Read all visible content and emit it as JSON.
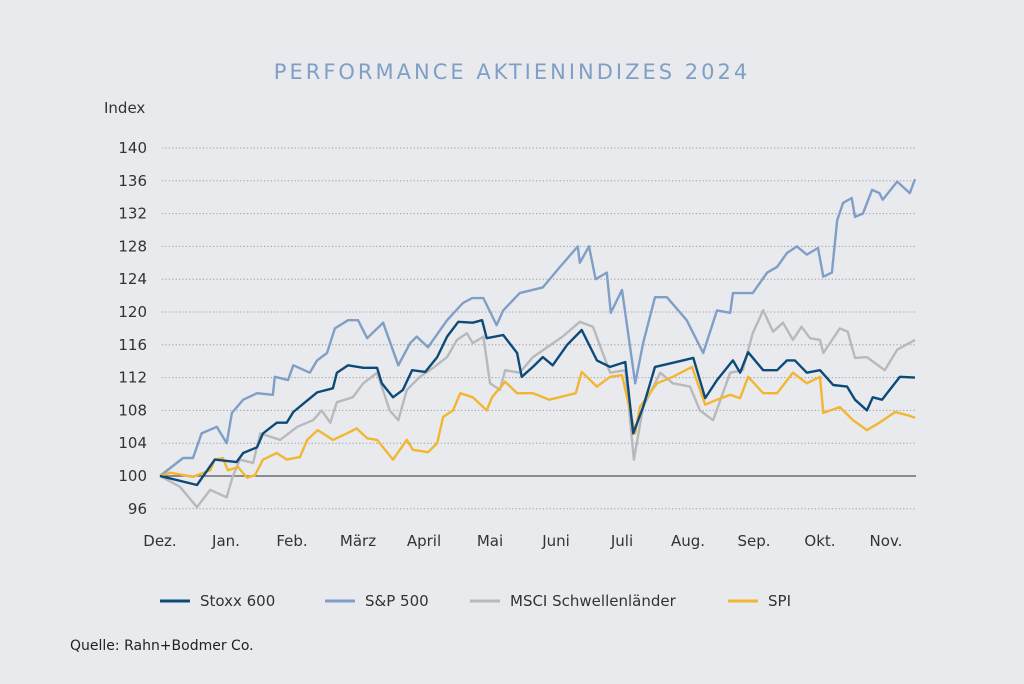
{
  "chart_data": {
    "type": "line",
    "title": "PERFORMANCE AKTIENINDIZES 2024",
    "ylabel": "Index",
    "xlabel": "",
    "ylim": [
      96,
      140
    ],
    "yticks": [
      "140",
      "136",
      "132",
      "128",
      "124",
      "120",
      "116",
      "112",
      "108",
      "104",
      "100",
      "96"
    ],
    "ytick_values": [
      140,
      136,
      132,
      128,
      124,
      120,
      116,
      112,
      108,
      104,
      100,
      96
    ],
    "xticks": [
      "Dez.",
      "Jan.",
      "Feb.",
      "März",
      "April",
      "Mai",
      "Juni",
      "Juli",
      "Aug.",
      "Sep.",
      "Okt.",
      "Nov."
    ],
    "x_unit": "months since Dez. (tick index)",
    "xlim": [
      0,
      11.45
    ],
    "baseline": 100,
    "grid": "horizontal dotted",
    "legend_position": "bottom",
    "series": [
      {
        "name": "Stoxx 600",
        "color": "#0d4a78",
        "points": [
          [
            0,
            100
          ],
          [
            0.1,
            99.8
          ],
          [
            0.56,
            98.9
          ],
          [
            0.83,
            102
          ],
          [
            1.16,
            101.7
          ],
          [
            1.26,
            102.8
          ],
          [
            1.47,
            103.5
          ],
          [
            1.56,
            105.2
          ],
          [
            1.77,
            106.5
          ],
          [
            1.92,
            106.5
          ],
          [
            2.02,
            107.8
          ],
          [
            2.2,
            109
          ],
          [
            2.38,
            110.2
          ],
          [
            2.62,
            110.7
          ],
          [
            2.68,
            112.6
          ],
          [
            2.85,
            113.5
          ],
          [
            3.08,
            113.2
          ],
          [
            3.29,
            113.2
          ],
          [
            3.36,
            111.3
          ],
          [
            3.53,
            109.6
          ],
          [
            3.68,
            110.5
          ],
          [
            3.82,
            112.9
          ],
          [
            4.02,
            112.7
          ],
          [
            4.2,
            114.5
          ],
          [
            4.35,
            117
          ],
          [
            4.52,
            118.8
          ],
          [
            4.74,
            118.7
          ],
          [
            4.88,
            119
          ],
          [
            4.95,
            116.8
          ],
          [
            5.2,
            117.2
          ],
          [
            5.41,
            115
          ],
          [
            5.48,
            112.1
          ],
          [
            5.65,
            113.3
          ],
          [
            5.8,
            114.5
          ],
          [
            5.95,
            113.5
          ],
          [
            6.17,
            116
          ],
          [
            6.39,
            117.8
          ],
          [
            6.62,
            114.1
          ],
          [
            6.82,
            113.3
          ],
          [
            7.05,
            113.9
          ],
          [
            7.17,
            105.2
          ],
          [
            7.32,
            108.4
          ],
          [
            7.5,
            113.3
          ],
          [
            7.77,
            113.8
          ],
          [
            8.08,
            114.4
          ],
          [
            8.26,
            109.5
          ],
          [
            8.44,
            111.7
          ],
          [
            8.68,
            114.1
          ],
          [
            8.79,
            112.6
          ],
          [
            8.91,
            115.1
          ],
          [
            9.14,
            112.9
          ],
          [
            9.35,
            112.9
          ],
          [
            9.5,
            114.1
          ],
          [
            9.62,
            114.1
          ],
          [
            9.8,
            112.6
          ],
          [
            10,
            112.9
          ],
          [
            10.2,
            111.1
          ],
          [
            10.41,
            110.9
          ],
          [
            10.53,
            109.3
          ],
          [
            10.71,
            108
          ],
          [
            10.8,
            109.6
          ],
          [
            10.94,
            109.3
          ],
          [
            11.21,
            112.1
          ],
          [
            11.44,
            112
          ]
        ]
      },
      {
        "name": "S&P 500",
        "color": "#7f9fc6",
        "points": [
          [
            0,
            100
          ],
          [
            0.35,
            102.2
          ],
          [
            0.5,
            102.2
          ],
          [
            0.63,
            105.2
          ],
          [
            0.86,
            106
          ],
          [
            1.01,
            104
          ],
          [
            1.09,
            107.7
          ],
          [
            1.26,
            109.3
          ],
          [
            1.47,
            110.1
          ],
          [
            1.71,
            109.9
          ],
          [
            1.74,
            112.1
          ],
          [
            1.94,
            111.7
          ],
          [
            2.02,
            113.5
          ],
          [
            2.27,
            112.6
          ],
          [
            2.38,
            114.1
          ],
          [
            2.53,
            115
          ],
          [
            2.65,
            118
          ],
          [
            2.85,
            119
          ],
          [
            3,
            119
          ],
          [
            3.14,
            116.8
          ],
          [
            3.38,
            118.7
          ],
          [
            3.61,
            113.5
          ],
          [
            3.79,
            116.2
          ],
          [
            3.89,
            117
          ],
          [
            4.06,
            115.7
          ],
          [
            4.35,
            119
          ],
          [
            4.59,
            121.1
          ],
          [
            4.73,
            121.7
          ],
          [
            4.9,
            121.7
          ],
          [
            5.1,
            118.4
          ],
          [
            5.2,
            120.2
          ],
          [
            5.45,
            122.3
          ],
          [
            5.8,
            123
          ],
          [
            6.06,
            125.5
          ],
          [
            6.33,
            128
          ],
          [
            6.36,
            126
          ],
          [
            6.5,
            128
          ],
          [
            6.6,
            124
          ],
          [
            6.77,
            124.8
          ],
          [
            6.83,
            119.9
          ],
          [
            7,
            122.7
          ],
          [
            7.2,
            111.3
          ],
          [
            7.32,
            116.2
          ],
          [
            7.5,
            121.8
          ],
          [
            7.68,
            121.8
          ],
          [
            7.98,
            119
          ],
          [
            8.23,
            115
          ],
          [
            8.44,
            120.2
          ],
          [
            8.64,
            119.9
          ],
          [
            8.68,
            122.3
          ],
          [
            8.98,
            122.3
          ],
          [
            9.2,
            124.8
          ],
          [
            9.35,
            125.5
          ],
          [
            9.5,
            127.2
          ],
          [
            9.65,
            128
          ],
          [
            9.8,
            127
          ],
          [
            9.97,
            127.8
          ],
          [
            10.05,
            124.3
          ],
          [
            10.18,
            124.8
          ],
          [
            10.26,
            131.2
          ],
          [
            10.35,
            133.3
          ],
          [
            10.48,
            133.9
          ],
          [
            10.53,
            131.6
          ],
          [
            10.65,
            132
          ],
          [
            10.79,
            134.9
          ],
          [
            10.9,
            134.5
          ],
          [
            10.95,
            133.7
          ],
          [
            11.17,
            135.9
          ],
          [
            11.36,
            134.5
          ],
          [
            11.44,
            136.2
          ]
        ]
      },
      {
        "name": "MSCI Schwellenländer",
        "color": "#b8b9bb",
        "points": [
          [
            0,
            100
          ],
          [
            0.3,
            98.7
          ],
          [
            0.56,
            96.2
          ],
          [
            0.76,
            98.3
          ],
          [
            1.01,
            97.4
          ],
          [
            1.1,
            99.9
          ],
          [
            1.21,
            102
          ],
          [
            1.41,
            101.6
          ],
          [
            1.52,
            105.2
          ],
          [
            1.82,
            104.4
          ],
          [
            2.08,
            106
          ],
          [
            2.32,
            106.8
          ],
          [
            2.45,
            108
          ],
          [
            2.58,
            106.5
          ],
          [
            2.68,
            109
          ],
          [
            2.92,
            109.6
          ],
          [
            3.08,
            111.3
          ],
          [
            3.29,
            112.6
          ],
          [
            3.48,
            108
          ],
          [
            3.61,
            106.8
          ],
          [
            3.74,
            110.5
          ],
          [
            3.94,
            112.1
          ],
          [
            4.14,
            113.2
          ],
          [
            4.35,
            114.5
          ],
          [
            4.5,
            116.6
          ],
          [
            4.65,
            117.4
          ],
          [
            4.74,
            116.2
          ],
          [
            4.9,
            117
          ],
          [
            5,
            111.3
          ],
          [
            5.15,
            110.5
          ],
          [
            5.23,
            112.9
          ],
          [
            5.45,
            112.6
          ],
          [
            5.65,
            114.5
          ],
          [
            6.1,
            117
          ],
          [
            6.36,
            118.8
          ],
          [
            6.56,
            118.2
          ],
          [
            6.82,
            112.6
          ],
          [
            7.05,
            112.9
          ],
          [
            7.18,
            102
          ],
          [
            7.32,
            108.4
          ],
          [
            7.58,
            112.6
          ],
          [
            7.77,
            111.3
          ],
          [
            8.03,
            110.9
          ],
          [
            8.18,
            108
          ],
          [
            8.38,
            106.8
          ],
          [
            8.64,
            112.6
          ],
          [
            8.83,
            112.9
          ],
          [
            8.98,
            117.4
          ],
          [
            9.14,
            120.2
          ],
          [
            9.29,
            117.6
          ],
          [
            9.44,
            118.7
          ],
          [
            9.59,
            116.6
          ],
          [
            9.72,
            118.2
          ],
          [
            9.85,
            116.8
          ],
          [
            10,
            116.6
          ],
          [
            10.05,
            115
          ],
          [
            10.3,
            118
          ],
          [
            10.42,
            117.6
          ],
          [
            10.53,
            114.4
          ],
          [
            10.71,
            114.5
          ],
          [
            10.98,
            112.9
          ],
          [
            11.17,
            115.4
          ],
          [
            11.44,
            116.6
          ]
        ]
      },
      {
        "name": "SPI",
        "color": "#f2b632",
        "points": [
          [
            0,
            100
          ],
          [
            0.15,
            100.4
          ],
          [
            0.5,
            99.9
          ],
          [
            0.76,
            100.7
          ],
          [
            0.83,
            102
          ],
          [
            0.95,
            102.2
          ],
          [
            1.03,
            100.7
          ],
          [
            1.18,
            101.1
          ],
          [
            1.32,
            99.8
          ],
          [
            1.44,
            100.1
          ],
          [
            1.56,
            102
          ],
          [
            1.77,
            102.8
          ],
          [
            1.92,
            102
          ],
          [
            2.12,
            102.3
          ],
          [
            2.23,
            104.4
          ],
          [
            2.39,
            105.6
          ],
          [
            2.62,
            104.4
          ],
          [
            2.83,
            105.2
          ],
          [
            2.98,
            105.8
          ],
          [
            3.14,
            104.6
          ],
          [
            3.29,
            104.4
          ],
          [
            3.53,
            102
          ],
          [
            3.74,
            104.4
          ],
          [
            3.83,
            103.2
          ],
          [
            4.06,
            102.9
          ],
          [
            4.2,
            104
          ],
          [
            4.29,
            107.2
          ],
          [
            4.44,
            108
          ],
          [
            4.55,
            110.1
          ],
          [
            4.74,
            109.6
          ],
          [
            4.95,
            108
          ],
          [
            5.03,
            109.6
          ],
          [
            5.23,
            111.5
          ],
          [
            5.41,
            110.1
          ],
          [
            5.65,
            110.1
          ],
          [
            5.9,
            109.3
          ],
          [
            6.3,
            110.1
          ],
          [
            6.39,
            112.7
          ],
          [
            6.62,
            110.9
          ],
          [
            6.82,
            112.1
          ],
          [
            7,
            112.3
          ],
          [
            7.2,
            105.2
          ],
          [
            7.27,
            108.4
          ],
          [
            7.53,
            111.3
          ],
          [
            7.77,
            112.1
          ],
          [
            8.06,
            113.3
          ],
          [
            8.26,
            108.7
          ],
          [
            8.44,
            109.3
          ],
          [
            8.64,
            109.9
          ],
          [
            8.79,
            109.5
          ],
          [
            8.91,
            112.1
          ],
          [
            9.14,
            110.1
          ],
          [
            9.35,
            110.1
          ],
          [
            9.59,
            112.6
          ],
          [
            9.8,
            111.3
          ],
          [
            10,
            112.1
          ],
          [
            10.05,
            107.7
          ],
          [
            10.3,
            108.4
          ],
          [
            10.5,
            106.8
          ],
          [
            10.71,
            105.6
          ],
          [
            10.9,
            106.5
          ],
          [
            11.14,
            107.8
          ],
          [
            11.33,
            107.4
          ],
          [
            11.44,
            107.1
          ]
        ]
      }
    ]
  },
  "source": "Quelle: Rahn+Bodmer Co."
}
